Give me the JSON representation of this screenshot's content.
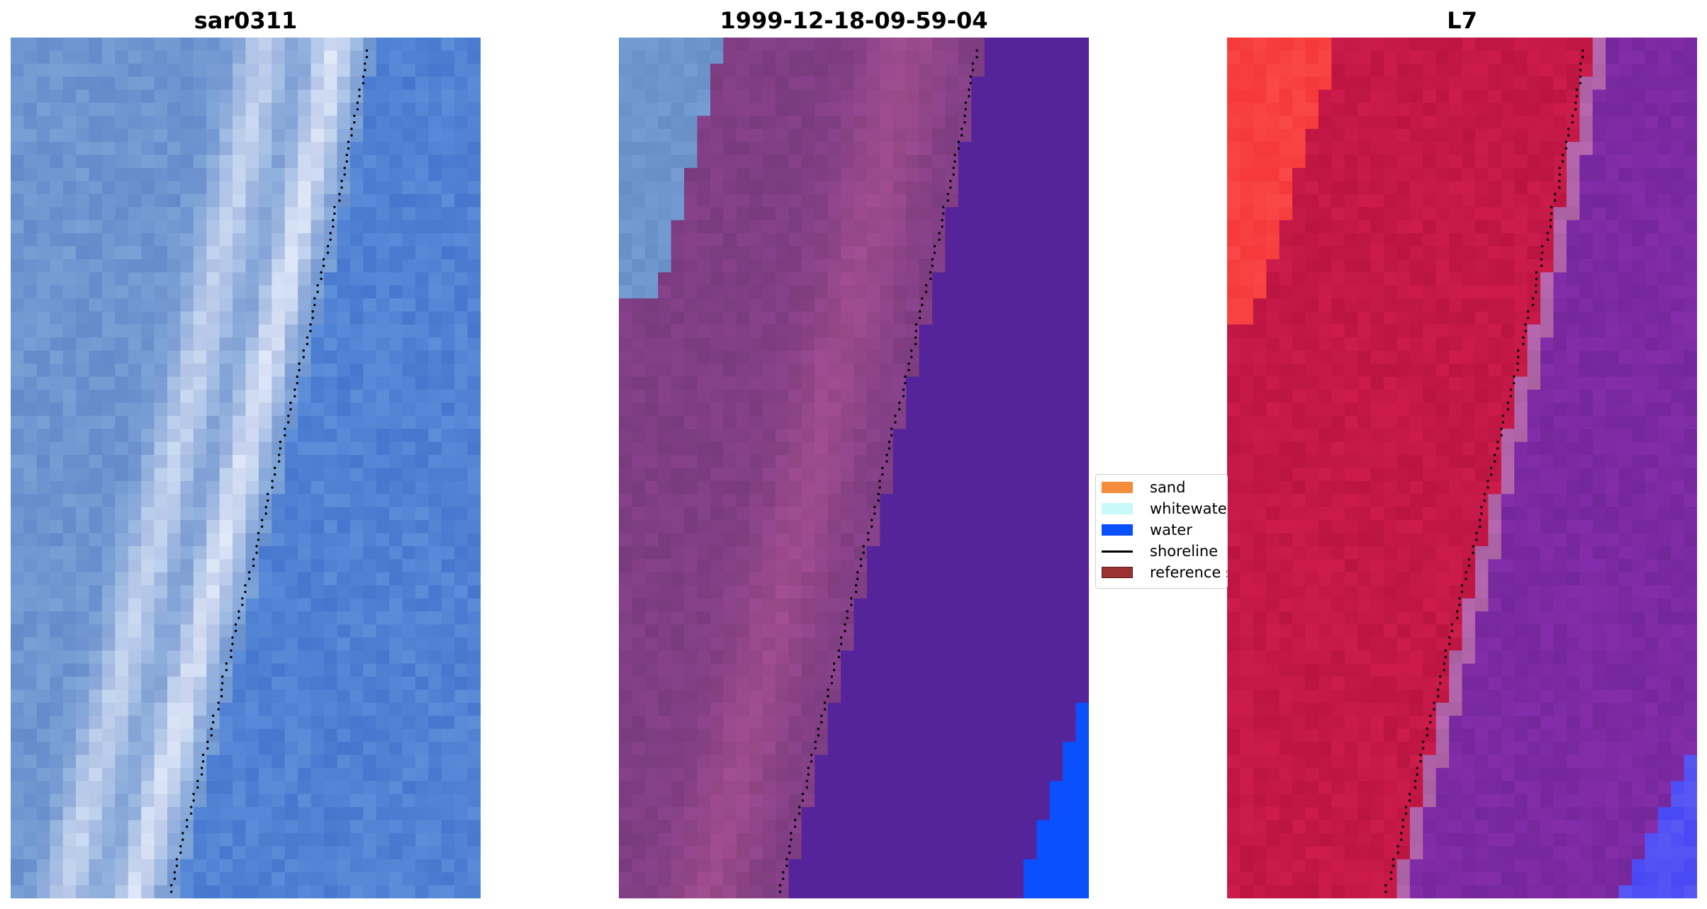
{
  "panels": [
    {
      "title": "sar0311",
      "palette": "rgb"
    },
    {
      "title": "1999-12-18-09-59-04",
      "palette": "classified"
    },
    {
      "title": "L7",
      "palette": "ndwi"
    }
  ],
  "legend": [
    {
      "label": "sand",
      "color": "#f58c3c",
      "type": "patch"
    },
    {
      "label": "whitewater",
      "color": "#c8fafa",
      "type": "patch"
    },
    {
      "label": "water",
      "color": "#0a50ff",
      "type": "patch"
    },
    {
      "label": "shoreline",
      "color": "#000000",
      "type": "line"
    },
    {
      "label": "reference s",
      "color": "#9b3232",
      "type": "patch"
    }
  ],
  "colors": {
    "water_class": "#0a50ff",
    "deep_water_class": "#55249a",
    "land_class": "#7f3d82",
    "ndwi_land": "#c41746",
    "ndwi_water": "#7a2aa0",
    "ndwi_sand": "#ff4040",
    "rgb_water": "#4f7fd0",
    "shoreline_dots": "#000000"
  }
}
